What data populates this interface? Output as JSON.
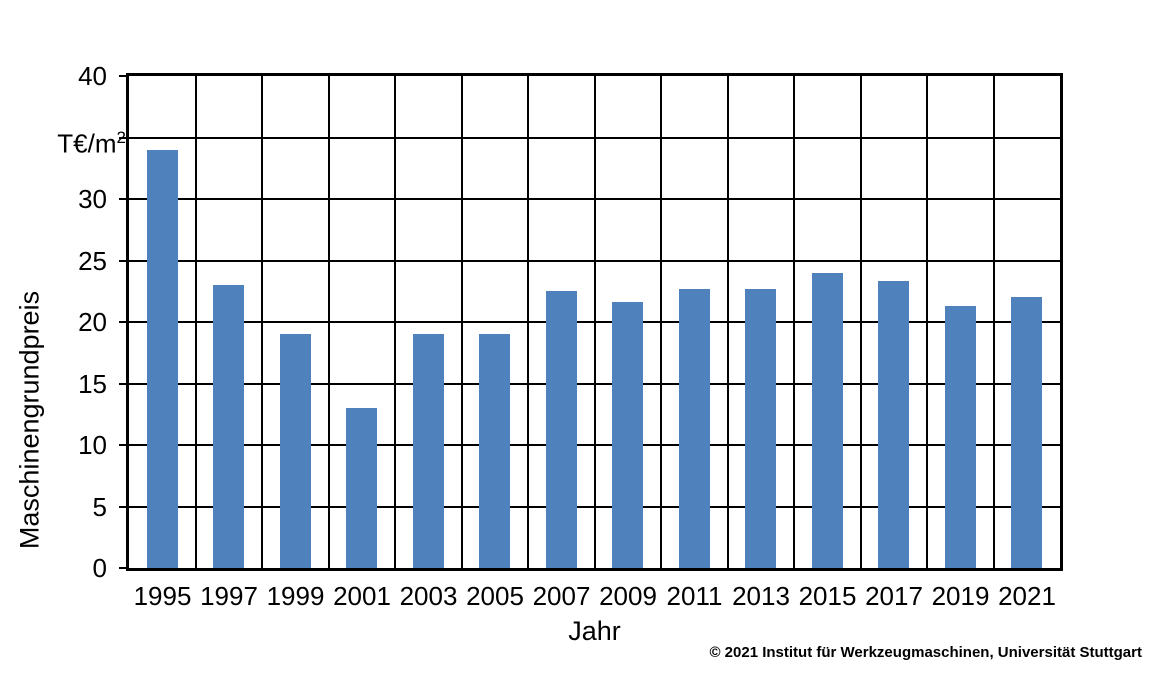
{
  "chart_data": {
    "type": "bar",
    "title": "",
    "categories": [
      "1995",
      "1997",
      "1999",
      "2001",
      "2003",
      "2005",
      "2007",
      "2009",
      "2011",
      "2013",
      "2015",
      "2017",
      "2019",
      "2021"
    ],
    "values": [
      34,
      23,
      19,
      13,
      19,
      19,
      22.5,
      21.6,
      22.7,
      22.7,
      24,
      23.3,
      21.3,
      22
    ],
    "xlabel": "Jahr",
    "ylabel": "Maschinengrundpreis",
    "y_unit_text": "T€/m",
    "y_unit_superscript": "2",
    "y_unit_at_value": 35,
    "ylim": [
      0,
      40
    ],
    "y_tick_step": 5,
    "y_ticks": [
      {
        "v": 40,
        "t": "40"
      },
      {
        "v": 35,
        "t": ""
      },
      {
        "v": 30,
        "t": "30"
      },
      {
        "v": 25,
        "t": "25"
      },
      {
        "v": 20,
        "t": "20"
      },
      {
        "v": 15,
        "t": "15"
      },
      {
        "v": 10,
        "t": "10"
      },
      {
        "v": 5,
        "t": "5"
      },
      {
        "v": 0,
        "t": "0"
      }
    ],
    "bar_color": "#4F81BD",
    "grid": "both",
    "legend": "none"
  },
  "footer": {
    "copyright": "© 2021 Institut für Werkzeugmaschinen, Universität Stuttgart"
  }
}
